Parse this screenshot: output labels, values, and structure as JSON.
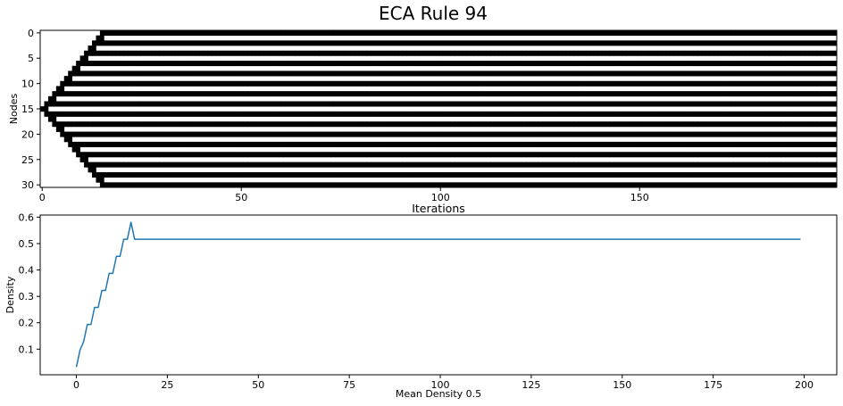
{
  "figure": {
    "title": "ECA Rule 94"
  },
  "chart_data": [
    {
      "type": "heatmap",
      "rule": 94,
      "num_nodes": 31,
      "num_iterations": 200,
      "initial_state": "single center cell (node 15) on",
      "colors": {
        "on": "#000000",
        "off": "#ffffff"
      },
      "xlabel": "Iterations",
      "ylabel": "Nodes",
      "xlim": [
        0,
        200
      ],
      "ylim": [
        0,
        30
      ],
      "xticks": [
        "0",
        "50",
        "100",
        "150"
      ],
      "yticks": [
        "0",
        "5",
        "10",
        "15",
        "20",
        "25",
        "30"
      ],
      "grid": false
    },
    {
      "type": "line",
      "xlabel": "Mean Density 0.5",
      "ylabel": "Density",
      "xlim": [
        -9.95,
        208.95
      ],
      "ylim": [
        0.003,
        0.608
      ],
      "xticks": [
        "0",
        "25",
        "50",
        "75",
        "100",
        "125",
        "150",
        "175",
        "200"
      ],
      "yticks": [
        "0.1",
        "0.2",
        "0.3",
        "0.4",
        "0.5",
        "0.6"
      ],
      "series": [
        {
          "color": "#1f77b4",
          "values": "density of on-cells per iteration of the top panel (200 points, iterations 0–199)"
        }
      ],
      "grid": false
    }
  ]
}
